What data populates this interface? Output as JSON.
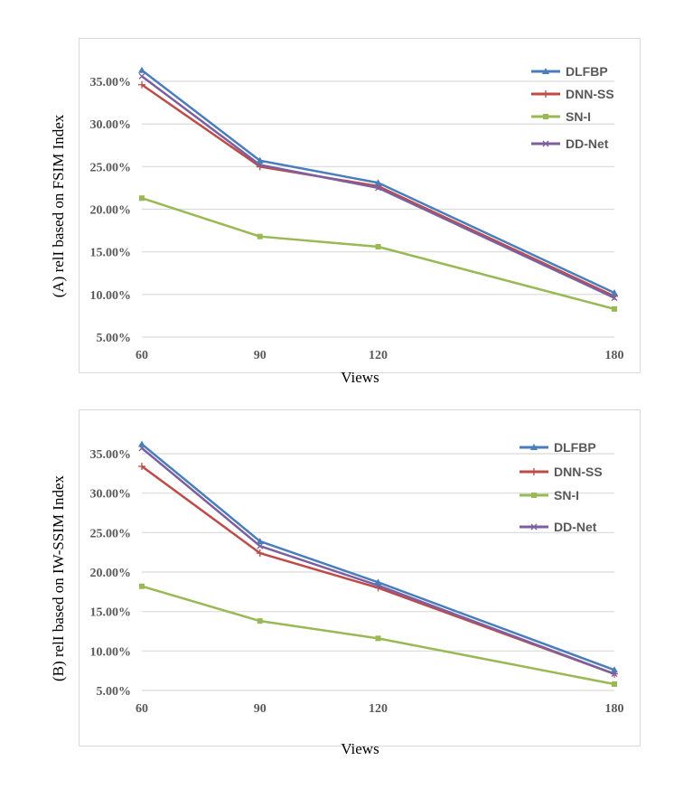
{
  "chart_data": [
    {
      "type": "line",
      "title": "",
      "xlabel": "Views",
      "ylabel": "(A) relI based on FSIM Index",
      "x": [
        "60",
        "90",
        "120",
        "180"
      ],
      "yticks": [
        "5.00%",
        "10.00%",
        "15.00%",
        "20.00%",
        "25.00%",
        "30.00%",
        "35.00%"
      ],
      "ylim": [
        5,
        35
      ],
      "grid": true,
      "legend_position": "top-right",
      "series": [
        {
          "name": "DLFBP",
          "color": "#4a7ebb",
          "marker": "triangle",
          "values": [
            36.3,
            25.7,
            23.1,
            10.2
          ]
        },
        {
          "name": "DNN-SS",
          "color": "#be4b48",
          "marker": "plus",
          "values": [
            34.6,
            25.0,
            22.7,
            9.8
          ]
        },
        {
          "name": "SN-I",
          "color": "#98b954",
          "marker": "square",
          "values": [
            21.3,
            16.8,
            15.6,
            8.3
          ]
        },
        {
          "name": "DD-Net",
          "color": "#7d5fa0",
          "marker": "x",
          "values": [
            35.6,
            25.2,
            22.5,
            9.6
          ]
        }
      ]
    },
    {
      "type": "line",
      "title": "",
      "xlabel": "Views",
      "ylabel": "(B) relI based on IW-SSIM Index",
      "x": [
        "60",
        "90",
        "120",
        "180"
      ],
      "yticks": [
        "5.00%",
        "10.00%",
        "15.00%",
        "20.00%",
        "25.00%",
        "30.00%",
        "35.00%"
      ],
      "ylim": [
        5,
        35
      ],
      "grid": true,
      "legend_position": "top-right",
      "series": [
        {
          "name": "DLFBP",
          "color": "#4a7ebb",
          "marker": "triangle",
          "values": [
            36.2,
            23.9,
            18.7,
            7.6
          ]
        },
        {
          "name": "DNN-SS",
          "color": "#be4b48",
          "marker": "plus",
          "values": [
            33.4,
            22.4,
            18.0,
            7.1
          ]
        },
        {
          "name": "SN-I",
          "color": "#98b954",
          "marker": "square",
          "values": [
            18.2,
            13.8,
            11.6,
            5.8
          ]
        },
        {
          "name": "DD-Net",
          "color": "#7d5fa0",
          "marker": "x",
          "values": [
            35.7,
            23.3,
            18.3,
            7.1
          ]
        }
      ]
    }
  ]
}
